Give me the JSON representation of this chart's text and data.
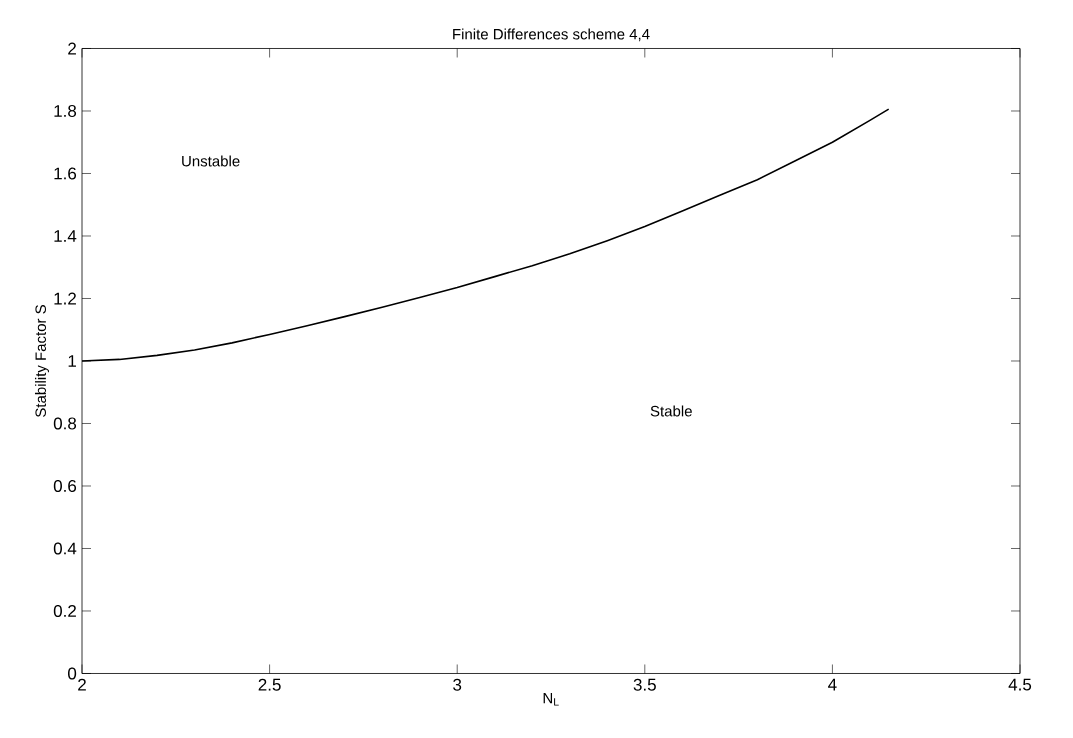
{
  "chart_data": {
    "type": "line",
    "title": "Finite Differences scheme 4,4",
    "xlabel": "N$_{L}$",
    "ylabel": "Stability Factor S",
    "x": [
      2.0,
      2.1,
      2.2,
      2.3,
      2.4,
      2.5,
      2.6,
      2.7,
      2.8,
      2.9,
      3.0,
      3.1,
      3.2,
      3.3,
      3.4,
      3.5,
      3.6,
      3.7,
      3.8,
      3.9,
      4.0,
      4.1,
      4.15
    ],
    "series": [
      {
        "color": "#000000",
        "values": [
          1.0,
          1.005,
          1.018,
          1.035,
          1.058,
          1.085,
          1.113,
          1.142,
          1.172,
          1.203,
          1.235,
          1.27,
          1.305,
          1.343,
          1.385,
          1.43,
          1.48,
          1.53,
          1.58,
          1.64,
          1.7,
          1.77,
          1.806
        ]
      }
    ],
    "annotations": [
      "Unstable",
      "Stable"
    ],
    "xlim": [
      2,
      4.5
    ],
    "xticks": [
      2,
      2.5,
      3,
      3.5,
      4,
      4.5
    ],
    "ylim": [
      0,
      2
    ],
    "yticks": [
      0,
      0.2,
      0.4,
      0.6,
      0.8,
      1,
      1.2,
      1.4,
      1.6,
      1.8,
      2
    ],
    "grid": false,
    "marker": "none",
    "line_style": "solid"
  }
}
